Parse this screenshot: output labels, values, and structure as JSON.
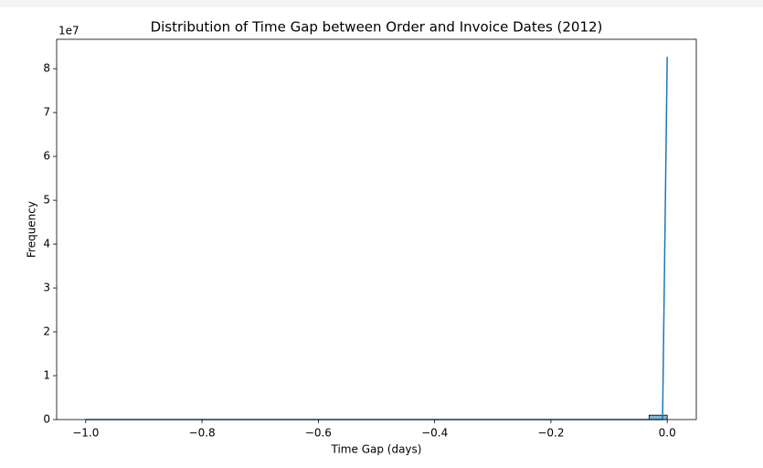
{
  "chart_data": {
    "type": "histogram",
    "title": "Distribution of Time Gap between Order and Invoice Dates (2012)",
    "x_label": "Time Gap (days)",
    "y_label": "Frequency",
    "y_offset_label": "1e7",
    "color": "#1f77b4",
    "bins": [
      -1.0,
      -0.96875,
      -0.9375,
      -0.90625,
      -0.875,
      -0.84375,
      -0.8125,
      -0.78125,
      -0.75,
      -0.71875,
      -0.6875,
      -0.65625,
      -0.625,
      -0.59375,
      -0.5625,
      -0.53125,
      -0.5,
      -0.46875,
      -0.4375,
      -0.40625,
      -0.375,
      -0.34375,
      -0.3125,
      -0.28125,
      -0.25,
      -0.21875,
      -0.1875,
      -0.15625,
      -0.125,
      -0.09375,
      -0.0625,
      -0.03125,
      0.0
    ],
    "values": [
      0,
      0,
      0,
      0,
      0,
      0,
      0,
      0,
      0,
      0,
      0,
      0,
      0,
      0,
      0,
      0,
      0,
      0,
      0,
      0,
      0,
      0,
      0,
      0,
      0,
      0,
      0,
      0,
      0,
      0,
      0,
      1000000
    ],
    "kde": {
      "x": [
        -1.0,
        -0.008,
        0.0
      ],
      "values": [
        0,
        0,
        82700000
      ]
    },
    "xlim": [
      -1.05,
      0.05
    ],
    "ylim": [
      0,
      86700000
    ],
    "xticks": [
      {
        "value": -1.0,
        "label": "−1.0"
      },
      {
        "value": -0.8,
        "label": "−0.8"
      },
      {
        "value": -0.6,
        "label": "−0.6"
      },
      {
        "value": -0.4,
        "label": "−0.4"
      },
      {
        "value": -0.2,
        "label": "−0.2"
      },
      {
        "value": 0.0,
        "label": "0.0"
      }
    ],
    "yticks": [
      0,
      {
        "value": 10000000,
        "label": "1"
      },
      {
        "value": 20000000,
        "label": "2"
      },
      {
        "value": 30000000,
        "label": "3"
      },
      {
        "value": 40000000,
        "label": "4"
      },
      {
        "value": 50000000,
        "label": "5"
      },
      {
        "value": 60000000,
        "label": "6"
      },
      {
        "value": 70000000,
        "label": "7"
      },
      {
        "value": 80000000,
        "label": "8"
      }
    ]
  }
}
